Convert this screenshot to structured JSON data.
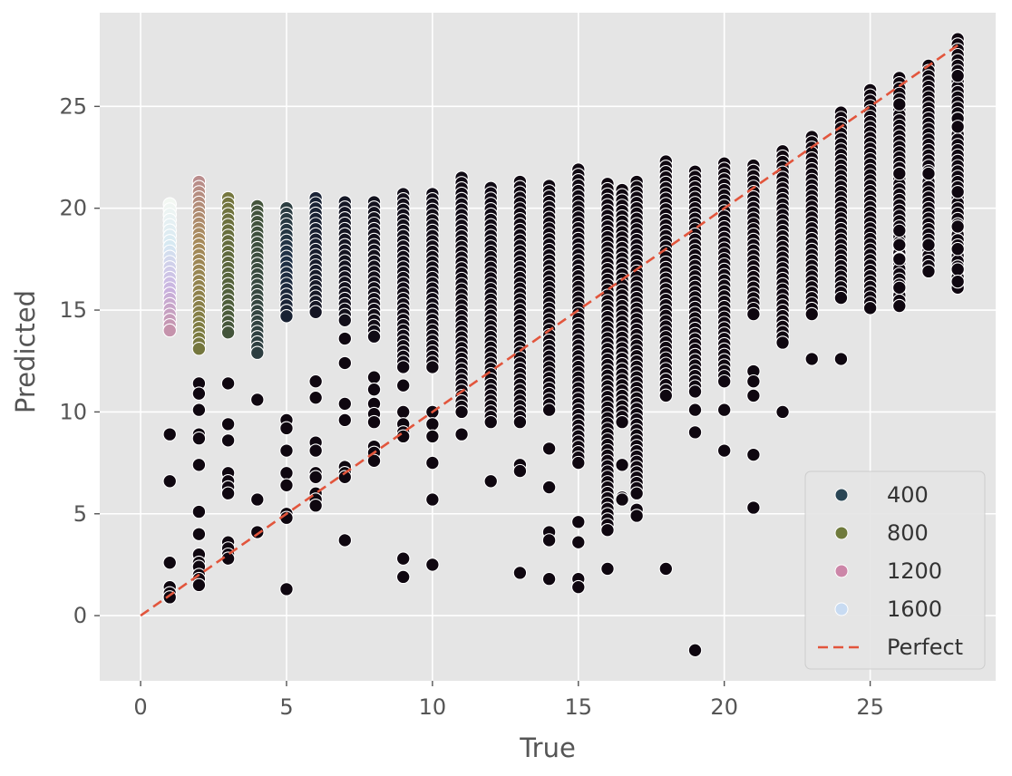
{
  "chart_data": {
    "type": "scatter",
    "title": "",
    "xlabel": "True",
    "ylabel": "Predicted",
    "xlim": [
      -1.4,
      29.3
    ],
    "ylim": [
      -3.2,
      29.6
    ],
    "xticks": [
      0,
      5,
      10,
      15,
      20,
      25
    ],
    "yticks": [
      0,
      5,
      10,
      15,
      20,
      25
    ],
    "grid": true,
    "hue_scale": {
      "name": "cubehelix",
      "min": 0,
      "max": 1800,
      "colors": [
        "#0f0710",
        "#1e2f45",
        "#4a5b3a",
        "#7a7a3f",
        "#a68a5a",
        "#c48fa6",
        "#c9b3e0",
        "#d6e8f2",
        "#f3f8f3"
      ]
    },
    "legend": {
      "position": "lower-right",
      "entries": [
        {
          "label": "400",
          "hue": 400,
          "color": "#2a4655"
        },
        {
          "label": "800",
          "hue": 800,
          "color": "#6f7a3c"
        },
        {
          "label": "1200",
          "hue": 1200,
          "color": "#cc86a8"
        },
        {
          "label": "1600",
          "hue": 1600,
          "color": "#c8dbf2"
        },
        {
          "label": "Perfect",
          "style": "dashed-line",
          "color": "#e2553c"
        }
      ]
    },
    "perfect_line": {
      "x": [
        0,
        28
      ],
      "y": [
        0,
        28
      ],
      "color": "#e2553c",
      "label": "Perfect"
    },
    "columns": [
      {
        "x": 1,
        "hue_top": 1800,
        "hue_bottom": 1150,
        "ymin": 14,
        "ymax": 20.2,
        "extra": [
          8.9,
          6.6,
          2.6,
          1.4,
          1.1,
          0.9
        ]
      },
      {
        "x": 2,
        "hue_top": 1050,
        "hue_bottom": 650,
        "ymin": 13.1,
        "ymax": 21.3,
        "extra": [
          11.4,
          10.9,
          10.1,
          8.9,
          8.7,
          7.4,
          5.1,
          4.0,
          3.0,
          2.6,
          2.4,
          2.0,
          1.8,
          1.5
        ]
      },
      {
        "x": 3,
        "hue_top": 650,
        "hue_bottom": 420,
        "ymin": 13.9,
        "ymax": 20.5,
        "extra": [
          11.4,
          9.4,
          8.6,
          7.0,
          6.6,
          6.3,
          6.0,
          3.6,
          3.3,
          3.0,
          2.8
        ]
      },
      {
        "x": 4,
        "hue_top": 420,
        "hue_bottom": 300,
        "ymin": 12.9,
        "ymax": 20.1,
        "extra": [
          10.6,
          5.7,
          4.1
        ]
      },
      {
        "x": 5,
        "hue_top": 300,
        "hue_bottom": 150,
        "ymin": 14.7,
        "ymax": 20.0,
        "extra": [
          9.6,
          9.2,
          8.1,
          7.0,
          6.4,
          5.0,
          4.8,
          1.3
        ]
      },
      {
        "x": 6,
        "hue_top": 160,
        "hue_bottom": 80,
        "ymin": 14.9,
        "ymax": 20.5,
        "extra": [
          11.5,
          10.7,
          8.5,
          8.1,
          7.0,
          6.8,
          6.0,
          5.7,
          5.4
        ]
      },
      {
        "x": 7,
        "hue_top": 90,
        "hue_bottom": 40,
        "ymin": 14.5,
        "ymax": 20.3,
        "extra": [
          13.6,
          12.4,
          10.4,
          9.6,
          7.3,
          7.0,
          6.8,
          3.7
        ]
      },
      {
        "x": 8,
        "hue_top": 60,
        "hue_bottom": 20,
        "ymin": 13.7,
        "ymax": 20.3,
        "extra": [
          11.7,
          11.1,
          10.4,
          9.9,
          9.5,
          8.3,
          8.0,
          7.6
        ]
      },
      {
        "x": 9,
        "hue_top": 40,
        "hue_bottom": 10,
        "ymin": 12.2,
        "ymax": 20.7,
        "extra": [
          11.3,
          10.0,
          9.4,
          9.0,
          8.8,
          2.8,
          1.9
        ]
      },
      {
        "x": 10,
        "hue_top": 30,
        "hue_bottom": 10,
        "ymin": 12.2,
        "ymax": 20.7,
        "extra": [
          10.0,
          9.4,
          8.8,
          7.5,
          5.7,
          2.5
        ]
      },
      {
        "x": 11,
        "hue_top": 20,
        "hue_bottom": 0,
        "ymin": 10.0,
        "ymax": 21.5,
        "extra": [
          8.9
        ]
      },
      {
        "x": 12,
        "hue_top": 20,
        "hue_bottom": 0,
        "ymin": 9.5,
        "ymax": 21.0,
        "extra": [
          6.6
        ]
      },
      {
        "x": 13,
        "hue_top": 10,
        "hue_bottom": 0,
        "ymin": 9.5,
        "ymax": 21.3,
        "extra": [
          7.4,
          7.1,
          2.1
        ]
      },
      {
        "x": 14,
        "hue_top": 10,
        "hue_bottom": 0,
        "ymin": 10.1,
        "ymax": 21.1,
        "extra": [
          8.2,
          6.3,
          4.1,
          3.7,
          1.8
        ]
      },
      {
        "x": 15,
        "hue_top": 10,
        "hue_bottom": 0,
        "ymin": 7.5,
        "ymax": 21.9,
        "extra": [
          4.6,
          3.6,
          1.8,
          1.4
        ]
      },
      {
        "x": 16,
        "hue_top": 0,
        "hue_bottom": 0,
        "ymin": 4.2,
        "ymax": 21.2,
        "extra": [
          2.3
        ]
      },
      {
        "x": 16.5,
        "hue_top": 0,
        "hue_bottom": 0,
        "ymin": 9.5,
        "ymax": 20.9,
        "extra": [
          7.4,
          5.8,
          5.7
        ]
      },
      {
        "x": 17,
        "hue_top": 0,
        "hue_bottom": 0,
        "ymin": 6.0,
        "ymax": 21.3,
        "extra": [
          5.2,
          4.9
        ]
      },
      {
        "x": 18,
        "hue_top": 0,
        "hue_bottom": 0,
        "ymin": 10.8,
        "ymax": 22.3,
        "extra": [
          2.3
        ]
      },
      {
        "x": 19,
        "hue_top": 0,
        "hue_bottom": 0,
        "ymin": 11.0,
        "ymax": 21.8,
        "extra": [
          10.1,
          9.0,
          -1.7
        ]
      },
      {
        "x": 20,
        "hue_top": 0,
        "hue_bottom": 0,
        "ymin": 11.5,
        "ymax": 22.2,
        "extra": [
          10.1,
          8.1
        ]
      },
      {
        "x": 21,
        "hue_top": 0,
        "hue_bottom": 0,
        "ymin": 14.8,
        "ymax": 22.1,
        "extra": [
          12.0,
          11.5,
          10.8,
          7.9,
          5.3
        ]
      },
      {
        "x": 22,
        "hue_top": 0,
        "hue_bottom": 0,
        "ymin": 13.4,
        "ymax": 22.8,
        "extra": [
          10.0
        ]
      },
      {
        "x": 23,
        "hue_top": 0,
        "hue_bottom": 0,
        "ymin": 14.8,
        "ymax": 23.5,
        "extra": [
          12.6
        ]
      },
      {
        "x": 24,
        "hue_top": 0,
        "hue_bottom": 0,
        "ymin": 15.6,
        "ymax": 24.7,
        "extra": [
          12.6
        ]
      },
      {
        "x": 25,
        "hue_top": 0,
        "hue_bottom": 0,
        "ymin": 15.1,
        "ymax": 25.8,
        "extra": []
      },
      {
        "x": 26,
        "hue_top": 0,
        "hue_bottom": 0,
        "ymin": 15.2,
        "ymax": 26.4,
        "extra": [
          25.1,
          21.7,
          18.9,
          18.2,
          17.5,
          16.1
        ]
      },
      {
        "x": 27,
        "hue_top": 0,
        "hue_bottom": 0,
        "ymin": 16.9,
        "ymax": 27.0,
        "extra": [
          21.7,
          18.2,
          16.9
        ]
      },
      {
        "x": 28,
        "hue_top": 0,
        "hue_bottom": 0,
        "ymin": 16.1,
        "ymax": 28.3,
        "extra": [
          26.5,
          24.4,
          24.0,
          20.8,
          19.1,
          18.0,
          17.0,
          16.4
        ]
      }
    ]
  }
}
